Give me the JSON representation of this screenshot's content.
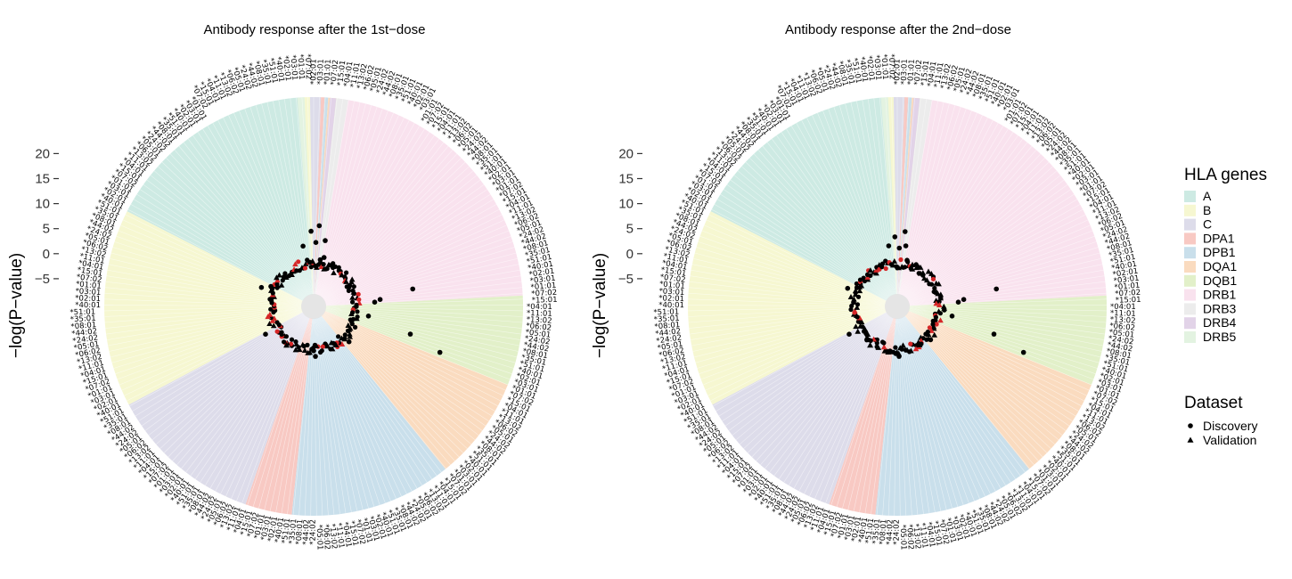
{
  "chart_data": [
    {
      "type": "polar-scatter",
      "title": "Antibody response after the 1st−dose",
      "ylabel": "−log(P−value)",
      "ylim": [
        -10,
        25
      ],
      "yticks": [
        "20",
        "15",
        "10",
        "5",
        "0",
        "−5"
      ],
      "ytick_values": [
        20,
        15,
        10,
        5,
        0,
        -5
      ],
      "sectors": [
        {
          "gene": "A",
          "start": 297,
          "end": 357
        },
        {
          "gene": "B",
          "start": 357,
          "end": 359
        },
        {
          "gene": "C",
          "start": 359,
          "end": 2
        },
        {
          "gene": "DPA1",
          "start": 2,
          "end": 3
        },
        {
          "gene": "DPB1",
          "start": 3,
          "end": 4
        },
        {
          "gene": "DQA1",
          "start": 4,
          "end": 6
        },
        {
          "gene": "DQB1",
          "start": 6,
          "end": 7
        },
        {
          "gene": "DRB1",
          "start": 7,
          "end": 87
        },
        {
          "gene": "DQB1",
          "start": 87,
          "end": 112
        },
        {
          "gene": "DQA1",
          "start": 112,
          "end": 141
        },
        {
          "gene": "DPB1",
          "start": 141,
          "end": 186
        },
        {
          "gene": "DPA1",
          "start": 186,
          "end": 199
        },
        {
          "gene": "C",
          "start": 199,
          "end": 242
        },
        {
          "gene": "B",
          "start": 242,
          "end": 297
        }
      ],
      "points": [
        {
          "angle": 4,
          "value": 8.5,
          "dataset": "Discovery"
        },
        {
          "angle": 358,
          "value": 7.5,
          "dataset": "Discovery"
        },
        {
          "angle": 10,
          "value": 6,
          "dataset": "Discovery"
        },
        {
          "angle": 350,
          "value": 5,
          "dataset": "Discovery"
        },
        {
          "angle": 12,
          "value": 3,
          "dataset": "Discovery"
        },
        {
          "angle": 8,
          "value": 2.5,
          "dataset": "Discovery"
        },
        {
          "angle": 355,
          "value": 2,
          "dataset": "Discovery"
        },
        {
          "angle": 2,
          "value": 5.5,
          "dataset": "Discovery"
        },
        {
          "angle": 80,
          "value": 12,
          "dataset": "Discovery"
        },
        {
          "angle": 84,
          "value": 6,
          "dataset": "Discovery"
        },
        {
          "angle": 86,
          "value": 5,
          "dataset": "Discovery"
        },
        {
          "angle": 110,
          "value": 18,
          "dataset": "Discovery"
        },
        {
          "angle": 106,
          "value": 12,
          "dataset": "Discovery"
        },
        {
          "angle": 100,
          "value": 4,
          "dataset": "Discovery"
        },
        {
          "angle": 290,
          "value": 4,
          "dataset": "Discovery"
        },
        {
          "angle": 295,
          "value": 2.5,
          "dataset": "Discovery"
        },
        {
          "angle": 240,
          "value": 4,
          "dataset": "Discovery"
        },
        {
          "angle": 180,
          "value": 2,
          "dataset": "Discovery"
        },
        {
          "angle": 178,
          "value": 3,
          "dataset": "Discovery"
        },
        {
          "angle": 135,
          "value": 3,
          "dataset": "Discovery"
        },
        {
          "angle": 60,
          "value": 1.5,
          "dataset": "Discovery"
        },
        {
          "angle": 300,
          "value": 1.5,
          "dataset": "Validation"
        },
        {
          "angle": 20,
          "value": 2,
          "dataset": "Validation"
        },
        {
          "angle": 215,
          "value": 2.5,
          "dataset": "Validation"
        },
        {
          "angle": 150,
          "value": 2,
          "dataset": "Validation"
        }
      ]
    },
    {
      "type": "polar-scatter",
      "title": "Antibody response after the 2nd−dose",
      "ylabel": "−log(P−value)",
      "ylim": [
        -10,
        25
      ],
      "yticks": [
        "20",
        "15",
        "10",
        "5",
        "0",
        "−5"
      ],
      "ytick_values": [
        20,
        15,
        10,
        5,
        0,
        -5
      ],
      "sectors": [
        {
          "gene": "A",
          "start": 297,
          "end": 357
        },
        {
          "gene": "B",
          "start": 357,
          "end": 359
        },
        {
          "gene": "C",
          "start": 359,
          "end": 2
        },
        {
          "gene": "DPA1",
          "start": 2,
          "end": 3
        },
        {
          "gene": "DPB1",
          "start": 3,
          "end": 4
        },
        {
          "gene": "DQA1",
          "start": 4,
          "end": 6
        },
        {
          "gene": "DQB1",
          "start": 6,
          "end": 7
        },
        {
          "gene": "DRB1",
          "start": 7,
          "end": 87
        },
        {
          "gene": "DQB1",
          "start": 87,
          "end": 112
        },
        {
          "gene": "DQA1",
          "start": 112,
          "end": 141
        },
        {
          "gene": "DPB1",
          "start": 141,
          "end": 186
        },
        {
          "gene": "DPA1",
          "start": 186,
          "end": 199
        },
        {
          "gene": "C",
          "start": 199,
          "end": 242
        },
        {
          "gene": "B",
          "start": 242,
          "end": 297
        }
      ],
      "points": [
        {
          "angle": 6,
          "value": 7.5,
          "dataset": "Discovery"
        },
        {
          "angle": 358,
          "value": 6.5,
          "dataset": "Discovery"
        },
        {
          "angle": 352,
          "value": 5,
          "dataset": "Discovery"
        },
        {
          "angle": 8,
          "value": 5,
          "dataset": "Discovery"
        },
        {
          "angle": 12,
          "value": 2.5,
          "dataset": "Discovery"
        },
        {
          "angle": 2,
          "value": 4.5,
          "dataset": "Discovery"
        },
        {
          "angle": 80,
          "value": 12,
          "dataset": "Discovery"
        },
        {
          "angle": 84,
          "value": 6,
          "dataset": "Discovery"
        },
        {
          "angle": 86,
          "value": 5,
          "dataset": "Discovery"
        },
        {
          "angle": 110,
          "value": 18,
          "dataset": "Discovery"
        },
        {
          "angle": 106,
          "value": 12,
          "dataset": "Discovery"
        },
        {
          "angle": 100,
          "value": 4,
          "dataset": "Discovery"
        },
        {
          "angle": 290,
          "value": 3.5,
          "dataset": "Discovery"
        },
        {
          "angle": 295,
          "value": 2,
          "dataset": "Discovery"
        },
        {
          "angle": 240,
          "value": 4,
          "dataset": "Discovery"
        },
        {
          "angle": 182,
          "value": 2.5,
          "dataset": "Discovery"
        },
        {
          "angle": 178,
          "value": 3,
          "dataset": "Discovery"
        },
        {
          "angle": 135,
          "value": 2.5,
          "dataset": "Discovery"
        },
        {
          "angle": 300,
          "value": 1.5,
          "dataset": "Validation"
        },
        {
          "angle": 20,
          "value": 2,
          "dataset": "Validation"
        },
        {
          "angle": 215,
          "value": 2.5,
          "dataset": "Validation"
        },
        {
          "angle": 150,
          "value": 2,
          "dataset": "Validation"
        }
      ]
    }
  ],
  "legend": {
    "genes_title": "HLA genes",
    "genes": [
      {
        "name": "A",
        "color": "#cdeae3"
      },
      {
        "name": "B",
        "color": "#f6f7d1"
      },
      {
        "name": "C",
        "color": "#dddcea"
      },
      {
        "name": "DPA1",
        "color": "#f8c9c3"
      },
      {
        "name": "DPB1",
        "color": "#c9dfeb"
      },
      {
        "name": "DQA1",
        "color": "#fadbbf"
      },
      {
        "name": "DQB1",
        "color": "#e2f0c9"
      },
      {
        "name": "DRB1",
        "color": "#f9e2ee"
      },
      {
        "name": "DRB3",
        "color": "#ececec"
      },
      {
        "name": "DRB4",
        "color": "#e2d3e8"
      },
      {
        "name": "DRB5",
        "color": "#e3f3e1"
      }
    ],
    "dataset_title": "Dataset",
    "datasets": [
      {
        "name": "Discovery",
        "shape": "circle"
      },
      {
        "name": "Validation",
        "shape": "triangle"
      }
    ]
  },
  "ring_label_sample": [
    "*02:01",
    "*03:01",
    "*01:01",
    "*07:02",
    "*15:01",
    "*04:01",
    "*11:01",
    "*13:02",
    "*06:02",
    "*05:01",
    "*24:02",
    "*44:02",
    "*08:01",
    "*35:01",
    "*51:01",
    "*40:01"
  ]
}
